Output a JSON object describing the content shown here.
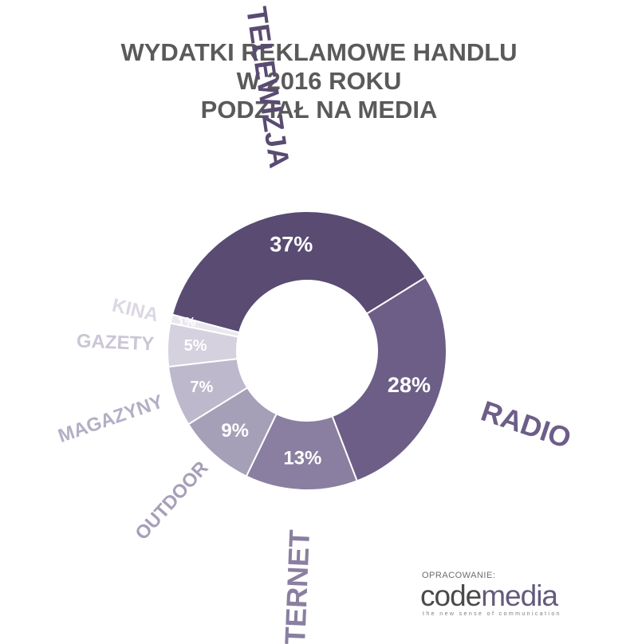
{
  "title_lines": [
    "WYDATKI REKLAMOWE HANDLU",
    "W 2016 ROKU",
    "PODZIAŁ NA MEDIA"
  ],
  "chart_data": {
    "type": "pie",
    "donut": true,
    "slices": [
      {
        "label": "TELEWIZJA",
        "value": 37,
        "value_label": "37%",
        "color": "#594b72",
        "label_color": "#594b72",
        "value_color": "#ffffff"
      },
      {
        "label": "RADIO",
        "value": 28,
        "value_label": "28%",
        "color": "#6d5e88",
        "label_color": "#6d5e88",
        "value_color": "#ffffff"
      },
      {
        "label": "INTERNET",
        "value": 13,
        "value_label": "13%",
        "color": "#8a7fa0",
        "label_color": "#8a7fa0",
        "value_color": "#ffffff"
      },
      {
        "label": "OUTDOOR",
        "value": 9,
        "value_label": "9%",
        "color": "#a69fb8",
        "label_color": "#a69fb8",
        "value_color": "#ffffff"
      },
      {
        "label": "MAGAZYNY",
        "value": 7,
        "value_label": "7%",
        "color": "#bdb8cb",
        "label_color": "#b4aec5",
        "value_color": "#ffffff"
      },
      {
        "label": "GAZETY",
        "value": 5,
        "value_label": "5%",
        "color": "#d5d1de",
        "label_color": "#cbc6d6",
        "value_color": "#ffffff"
      },
      {
        "label": "KINA",
        "value": 1,
        "value_label": "1%",
        "color": "#eae8ef",
        "label_color": "#dcd8e3",
        "value_color": "#ffffff"
      }
    ]
  },
  "footer": {
    "credit": "OPRACOWANIE:",
    "logo_part1": "code",
    "logo_part2": "media",
    "tagline": "the new sense of communication"
  }
}
